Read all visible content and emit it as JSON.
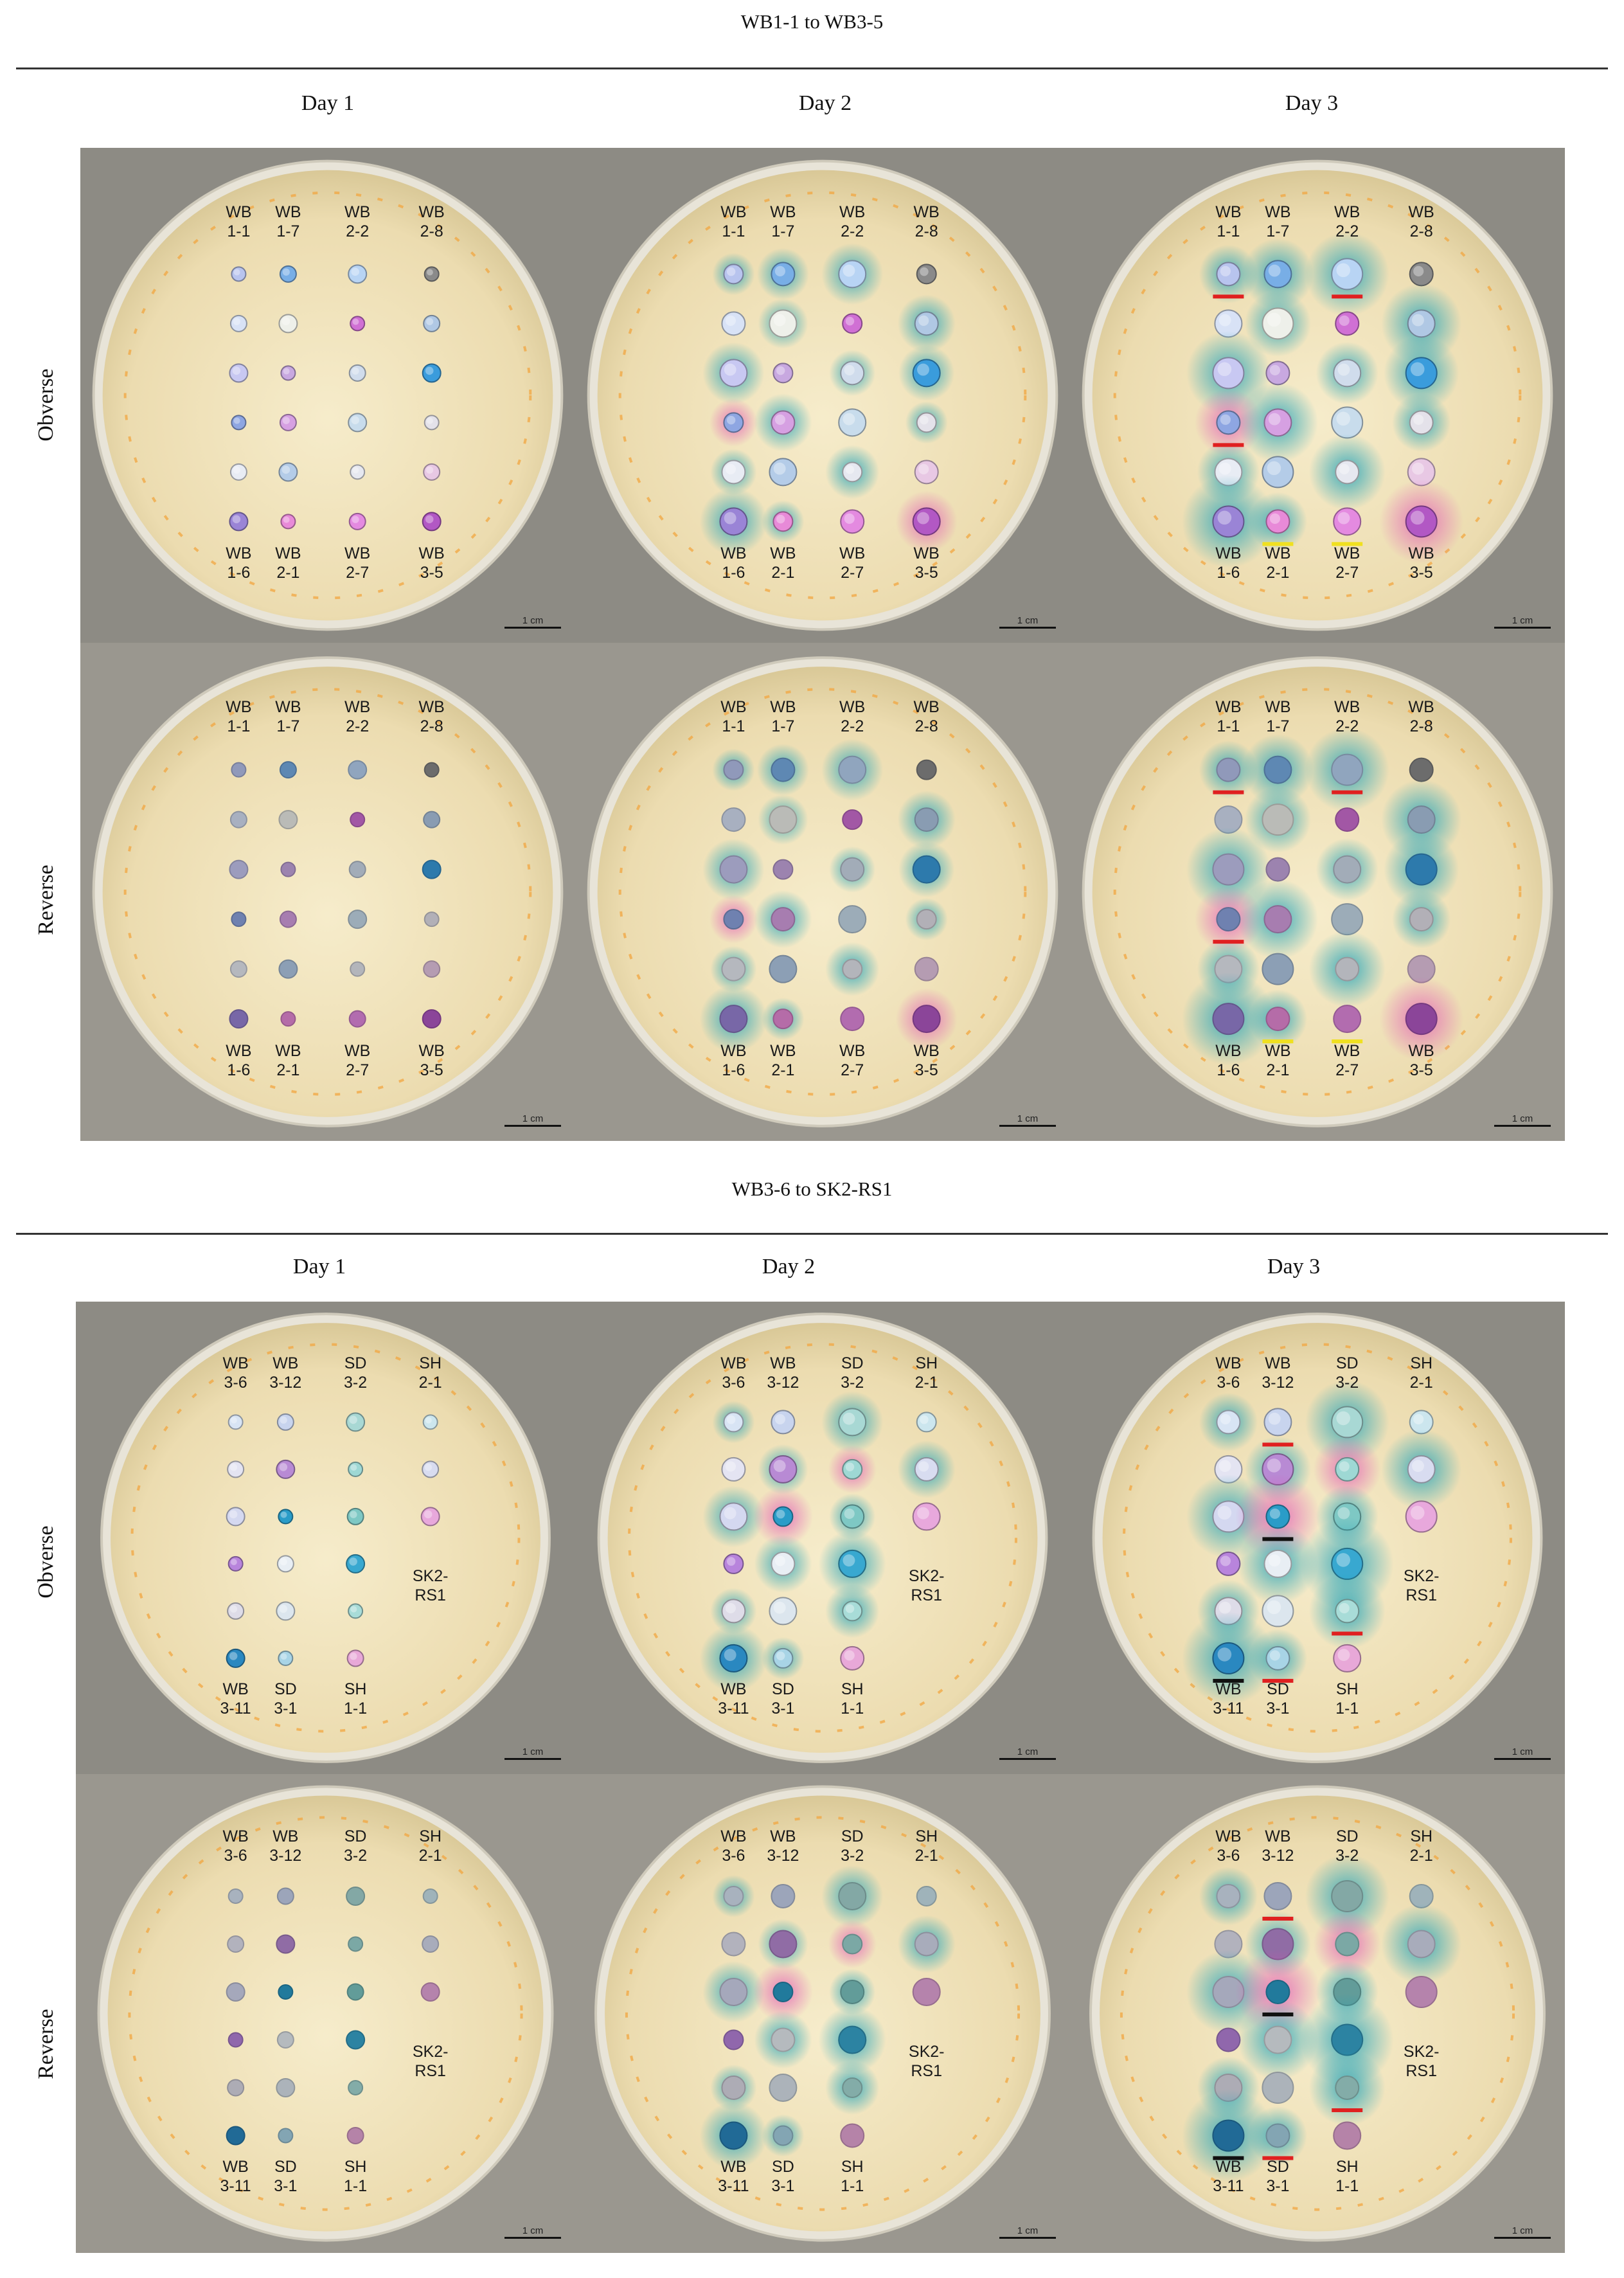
{
  "figure": {
    "sections": [
      {
        "title": "WB1-1 to WB3-5",
        "days": [
          "Day 1",
          "Day 2",
          "Day 3"
        ],
        "rows": [
          "Obverse",
          "Reverse"
        ],
        "top_labels": [
          [
            "WB",
            "1-1"
          ],
          [
            "WB",
            "1-7"
          ],
          [
            "WB",
            "2-2"
          ],
          [
            "WB",
            "2-8"
          ]
        ],
        "bottom_labels": [
          [
            "WB",
            "1-6"
          ],
          [
            "WB",
            "2-1"
          ],
          [
            "WB",
            "2-7"
          ],
          [
            "WB",
            "3-5"
          ]
        ],
        "side_label": null,
        "colonies": [
          [
            "#b8c4ee",
            "#78aee6",
            "#b8d4f4",
            "#8a8a8a"
          ],
          [
            "#d8e2f6",
            "#eef0ea",
            "#d070d4",
            "#b0c8e4"
          ],
          [
            "#c8c8f2",
            "#c8a8e0",
            "#d0dcec",
            "#3a9cdc"
          ],
          [
            "#8ea6e2",
            "#d6a0e2",
            "#c8dcec",
            "#e4e2ea"
          ],
          [
            "#e8ecf4",
            "#b4cce8",
            "#e6e8f0",
            "#e8c8e4"
          ],
          [
            "#9a84d6",
            "#e88ad8",
            "#e48ae0",
            "#b258c4"
          ]
        ]
      },
      {
        "title": "WB3-6 to SK2-RS1",
        "days": [
          "Day 1",
          "Day 2",
          "Day 3"
        ],
        "rows": [
          "Obverse",
          "Reverse"
        ],
        "top_labels": [
          [
            "WB",
            "3-6"
          ],
          [
            "WB",
            "3-12"
          ],
          [
            "SD",
            "3-2"
          ],
          [
            "SH",
            "2-1"
          ]
        ],
        "bottom_labels": [
          [
            "WB",
            "3-11"
          ],
          [
            "SD",
            "3-1"
          ],
          [
            "SH",
            "1-1"
          ],
          null
        ],
        "side_label": [
          "SK2-",
          "RS1"
        ],
        "colonies": [
          [
            "#d8e4f4",
            "#c8d4ee",
            "#a8d8d4",
            "#cce6ee"
          ],
          [
            "#e4e4f2",
            "#b88ad4",
            "#9ed8d4",
            "#d8dcf0"
          ],
          [
            "#d4d8f0",
            "#2a9cc8",
            "#7ec8c4",
            "#e8a8dc"
          ],
          [
            "#b884dc",
            "#e8eef4",
            "#38a8d0",
            null
          ],
          [
            "#dedce8",
            "#dce6ee",
            "#a8dcd8",
            null
          ],
          [
            "#2a88c0",
            "#a8d4e6",
            "#e8a8d8",
            null
          ]
        ]
      }
    ],
    "scale_bar_label": "1 cm"
  }
}
